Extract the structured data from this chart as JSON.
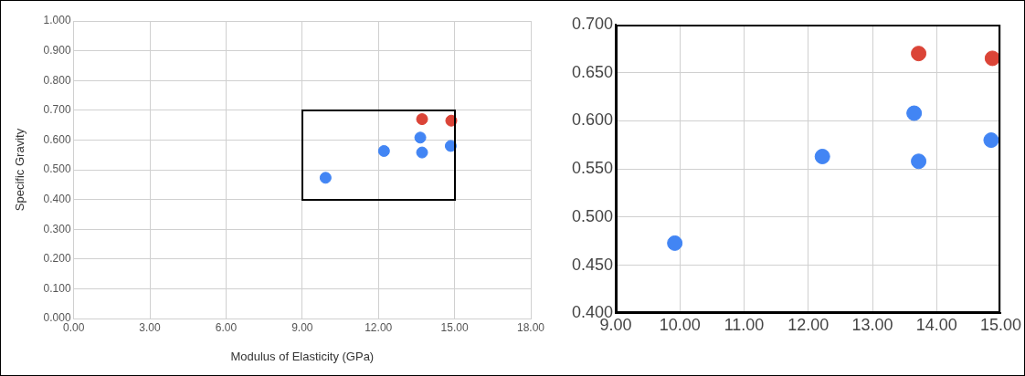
{
  "chart_data": [
    {
      "type": "scatter",
      "xlabel": "Modulus of Elasticity (GPa)",
      "ylabel": "Specific Gravity",
      "marker": "circle",
      "grid": true,
      "legend": false,
      "xlim": [
        0,
        18
      ],
      "xticks": [
        {
          "value": 0,
          "label": "0.00"
        },
        {
          "value": 3,
          "label": "3.00"
        },
        {
          "value": 6,
          "label": "6.00"
        },
        {
          "value": 9,
          "label": "9.00"
        },
        {
          "value": 12,
          "label": "12.00"
        },
        {
          "value": 15,
          "label": "15.00"
        },
        {
          "value": 18,
          "label": "18.00"
        }
      ],
      "ylim": [
        0,
        1
      ],
      "yticks": [
        {
          "value": 0,
          "label": "0.000"
        },
        {
          "value": 0.1,
          "label": "0.100"
        },
        {
          "value": 0.2,
          "label": "0.200"
        },
        {
          "value": 0.3,
          "label": "0.300"
        },
        {
          "value": 0.4,
          "label": "0.400"
        },
        {
          "value": 0.5,
          "label": "0.500"
        },
        {
          "value": 0.6,
          "label": "0.600"
        },
        {
          "value": 0.7,
          "label": "0.700"
        },
        {
          "value": 0.8,
          "label": "0.800"
        },
        {
          "value": 0.9,
          "label": "0.900"
        },
        {
          "value": 1,
          "label": "1.000"
        }
      ],
      "series": [
        {
          "color": "#4285f4",
          "x": [
            9.92,
            12.22,
            13.65,
            13.72,
            14.85
          ],
          "values": [
            0.473,
            0.563,
            0.608,
            0.558,
            0.58
          ]
        },
        {
          "color": "#db4437",
          "x": [
            13.72,
            14.87
          ],
          "values": [
            0.67,
            0.665
          ]
        }
      ]
    },
    {
      "type": "scatter",
      "marker": "circle",
      "grid": true,
      "legend": false,
      "xlim": [
        9,
        15
      ],
      "xticks": [
        {
          "value": 9,
          "label": "9.00"
        },
        {
          "value": 10,
          "label": "10.00"
        },
        {
          "value": 11,
          "label": "11.00"
        },
        {
          "value": 12,
          "label": "12.00"
        },
        {
          "value": 13,
          "label": "13.00"
        },
        {
          "value": 14,
          "label": "14.00"
        },
        {
          "value": 15,
          "label": "15.00"
        }
      ],
      "ylim": [
        0.4,
        0.7
      ],
      "yticks": [
        {
          "value": 0.4,
          "label": "0.400"
        },
        {
          "value": 0.45,
          "label": "0.450"
        },
        {
          "value": 0.5,
          "label": "0.500"
        },
        {
          "value": 0.55,
          "label": "0.550"
        },
        {
          "value": 0.6,
          "label": "0.600"
        },
        {
          "value": 0.65,
          "label": "0.650"
        },
        {
          "value": 0.7,
          "label": "0.700"
        }
      ],
      "series": [
        {
          "color": "#4285f4",
          "x": [
            9.92,
            12.22,
            13.65,
            13.72,
            14.85
          ],
          "values": [
            0.473,
            0.563,
            0.608,
            0.558,
            0.58
          ]
        },
        {
          "color": "#db4437",
          "x": [
            13.72,
            14.87
          ],
          "values": [
            0.67,
            0.665
          ]
        }
      ]
    }
  ]
}
